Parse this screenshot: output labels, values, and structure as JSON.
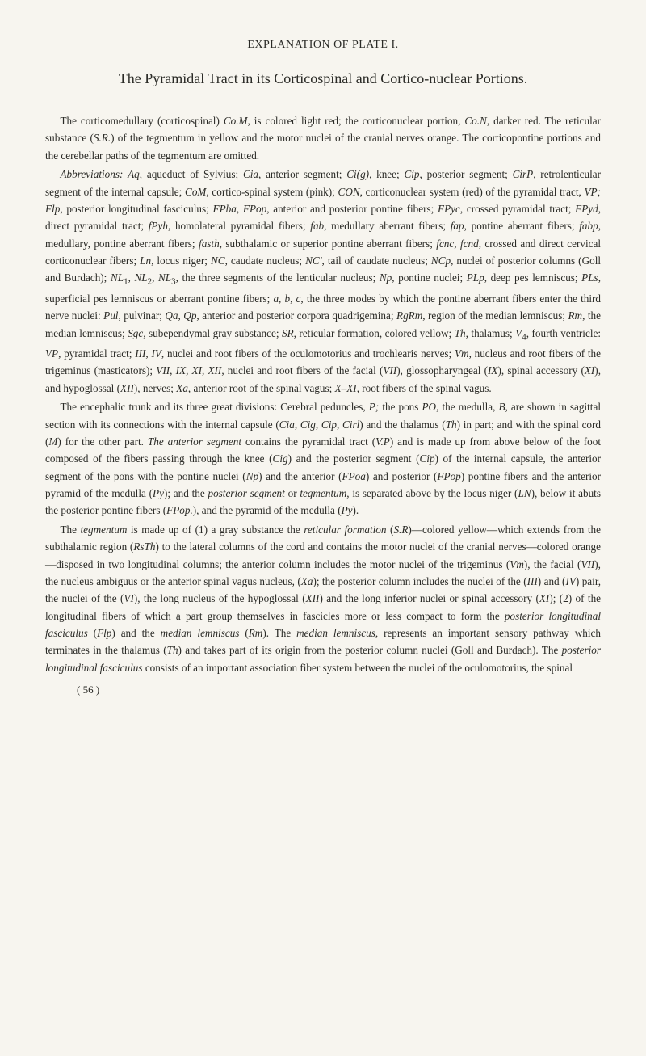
{
  "plateTitle": "EXPLANATION OF PLATE I.",
  "mainTitle": "The Pyramidal Tract in its Corticospinal and Cortico-nuclear Portions.",
  "paragraphs": [
    "The corticomedullary (corticospinal) <em>Co.M</em>, is colored light red; the corticonuclear portion, <em>Co.N</em>, darker red. The reticular substance (<em>S.R.</em>) of the tegmentum in yellow and the motor nuclei of the cranial nerves orange. The corticopontine portions and the cerebellar paths of the tegmentum are omitted.",
    "<em>Abbreviations:</em> <em>Aq</em>, aqueduct of Sylvius; <em>Cia</em>, anterior segment; <em>Ci(g)</em>, knee; <em>Cip</em>, posterior segment; <em>CirP</em>, retrolenticular segment of the internal capsule; <em>CoM</em>, cortico-spinal system (pink); <em>CON</em>, corticonuclear system (red) of the pyramidal tract, <em>VP;</em> <em>Flp</em>, posterior longitudinal fasciculus; <em>FPba</em>, <em>FPop</em>, anterior and posterior pontine fibers; <em>FPyc</em>, crossed pyramidal tract; <em>FPyd</em>, direct pyramidal tract; <em>fPyh</em>, homolateral pyramidal fibers; <em>fab</em>, medullary aberrant fibers; <em>fap</em>, pontine aberrant fibers; <em>fabp</em>, medullary, pontine aberrant fibers; <em>fasth</em>, subthalamic or superior pontine aberrant fibers; <em>fcnc</em>, <em>fcnd</em>, crossed and direct cervical corticonuclear fibers; <em>Ln</em>, locus niger; <em>NC</em>, caudate nucleus; <em>NC'</em>, tail of caudate nucleus; <em>NCp</em>, nuclei of posterior columns (Goll and Burdach); <em>NL</em><sub>1</sub>, <em>NL</em><sub>2</sub>, <em>NL</em><sub>3</sub>, the three segments of the lenticular nucleus; <em>Np</em>, pontine nuclei; <em>PLp</em>, deep pes lemniscus; <em>PLs</em>, superficial pes lemniscus or aberrant pontine fibers; <em>a</em>, <em>b</em>, <em>c</em>, the three modes by which the pontine aberrant fibers enter the third nerve nuclei: <em>Pul</em>, pulvinar; <em>Qa</em>, <em>Qp</em>, anterior and posterior corpora quadrigemina; <em>RgRm</em>, region of the median lemniscus; <em>Rm</em>, the median lemniscus; <em>Sgc</em>, subependymal gray substance; <em>SR</em>, reticular formation, colored yellow; <em>Th</em>, thalamus; <em>V</em><sub>4</sub>, fourth ventricle: <em>VP</em>, pyramidal tract; <em>III</em>, <em>IV</em>, nuclei and root fibers of the oculomotorius and trochlearis nerves; <em>Vm</em>, nucleus and root fibers of the trigeminus (masticators); <em>VII</em>, <em>IX</em>, <em>XI</em>, <em>XII</em>, nuclei and root fibers of the facial (<em>VII</em>), glossopharyngeal (<em>IX</em>), spinal accessory (<em>XI</em>), and hypoglossal (<em>XII</em>), nerves; <em>Xa</em>, anterior root of the spinal vagus; <em>X–XI</em>, root fibers of the spinal vagus.",
    "The encephalic trunk and its three great divisions: Cerebral peduncles, <em>P;</em> the pons <em>PO</em>, the medulla, <em>B</em>, are shown in sagittal section with its connections with the internal capsule (<em>Cia</em>, <em>Cig</em>, <em>Cip</em>, <em>Cirl</em>) and the thalamus (<em>Th</em>) in part; and with the spinal cord (<em>M</em>) for the other part. <em>The anterior segment</em> contains the pyramidal tract (<em>V.P</em>) and is made up from above below of the foot composed of the fibers passing through the knee (<em>Cig</em>) and the posterior segment (<em>Cip</em>) of the internal capsule, the anterior segment of the pons with the pontine nuclei (<em>Np</em>) and the anterior (<em>FPoa</em>) and posterior (<em>FPop</em>) pontine fibers and the anterior pyramid of the medulla (<em>Py</em>); and the <em>posterior segment</em> or <em>tegmentum</em>, is separated above by the locus niger (<em>LN</em>), below it abuts the posterior pontine fibers (<em>FPop.</em>), and the pyramid of the medulla (<em>Py</em>).",
    "The <em>tegmentum</em> is made up of (1) a gray substance the <em>reticular formation</em> (<em>S.R</em>)—colored yellow—which extends from the subthalamic region (<em>RsTh</em>) to the lateral columns of the cord and contains the motor nuclei of the cranial nerves—colored orange—disposed in two longitudinal columns; the anterior column includes the motor nuclei of the trigeminus (<em>Vm</em>), the facial (<em>VII</em>), the nucleus ambiguus or the anterior spinal vagus nucleus, (<em>Xa</em>); the posterior column includes the nuclei of the (<em>III</em>) and (<em>IV</em>) pair, the nuclei of the (<em>VI</em>), the long nucleus of the hypoglossal (<em>XII</em>) and the long inferior nuclei or spinal accessory (<em>XI</em>); (2) of the longitudinal fibers of which a part group themselves in fascicles more or less compact to form the <em>posterior longitudinal fasciculus</em> (<em>Flp</em>) and the <em>median lemniscus</em> (<em>Rm</em>). The <em>median lemniscus</em>, represents an important sensory pathway which terminates in the thalamus (<em>Th</em>) and takes part of its origin from the posterior column nuclei (Goll and Burdach). The <em>posterior longitudinal fasciculus</em> consists of an important association fiber system between the nuclei of the oculomotorius, the spinal"
  ],
  "pageNumber": "( 56 )",
  "colors": {
    "background": "#f7f5ef",
    "text": "#2a2a26"
  },
  "typography": {
    "plateTitleSize": 14,
    "mainTitleSize": 18,
    "bodySize": 13.2,
    "lineHeight": 1.62,
    "fontFamily": "Georgia, 'Times New Roman', serif"
  }
}
